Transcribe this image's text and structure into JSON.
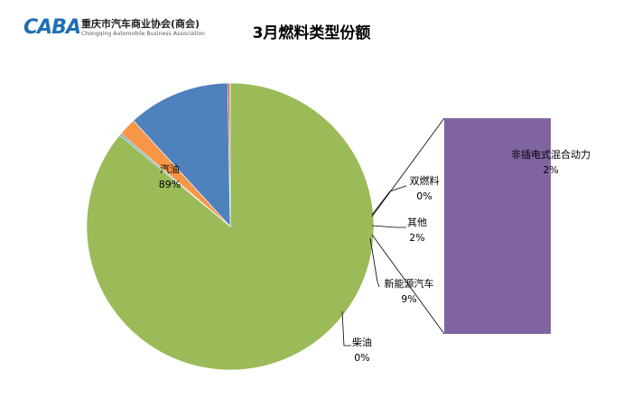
{
  "header": {
    "logo_mark": "CABA",
    "logo_name": "重庆市汽车商业协会(商会)",
    "logo_sub": "Chongqing Automobile Business Association"
  },
  "chart_data": {
    "type": "pie",
    "title": "3月燃料类型份额",
    "slices": [
      {
        "name": "汽油",
        "value": 89,
        "label": "89%",
        "color": "#9bbb59"
      },
      {
        "name": "双燃料",
        "value": 0,
        "label": "0%",
        "color": "#4bacc6"
      },
      {
        "name": "其他",
        "value": 2,
        "label": "2%",
        "color": "#f79646"
      },
      {
        "name": "新能源汽车",
        "value": 9,
        "label": "9%",
        "color": "#4f81bd"
      },
      {
        "name": "柴油",
        "value": 0,
        "label": "0%",
        "color": "#c0504d"
      }
    ],
    "breakout": {
      "name": "非插电式混合动力",
      "label": "2%",
      "color": "#8064a2"
    }
  }
}
